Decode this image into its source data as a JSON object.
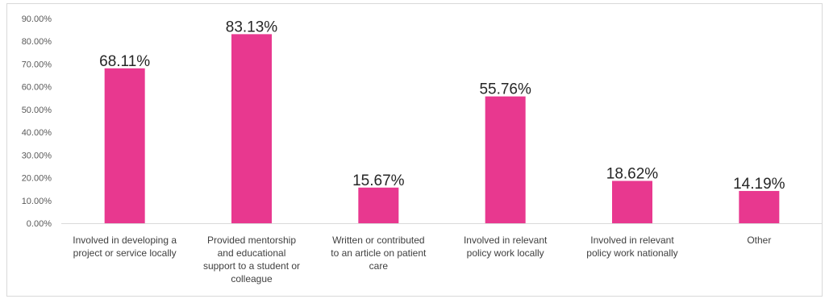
{
  "chart_data": {
    "type": "bar",
    "categories": [
      [
        "Involved in developing a",
        "project or service locally"
      ],
      [
        "Provided mentorship",
        "and educational",
        "support to a student or",
        "colleague"
      ],
      [
        "Written or contributed",
        "to an article on patient",
        "care"
      ],
      [
        "Involved in relevant",
        "policy work locally"
      ],
      [
        "Involved in relevant",
        "policy work nationally"
      ],
      [
        "Other"
      ]
    ],
    "values": [
      68.11,
      83.13,
      15.67,
      55.76,
      18.62,
      14.19
    ],
    "data_labels": [
      "68.11%",
      "83.13%",
      "15.67%",
      "55.76%",
      "18.62%",
      "14.19%"
    ],
    "y_ticks": [
      "0.00%",
      "10.00%",
      "20.00%",
      "30.00%",
      "40.00%",
      "50.00%",
      "60.00%",
      "70.00%",
      "80.00%",
      "90.00%"
    ],
    "ylim": [
      0,
      90
    ],
    "grid": false,
    "bar_color": "#e8388f",
    "axis_color": "#d9d9d9"
  }
}
